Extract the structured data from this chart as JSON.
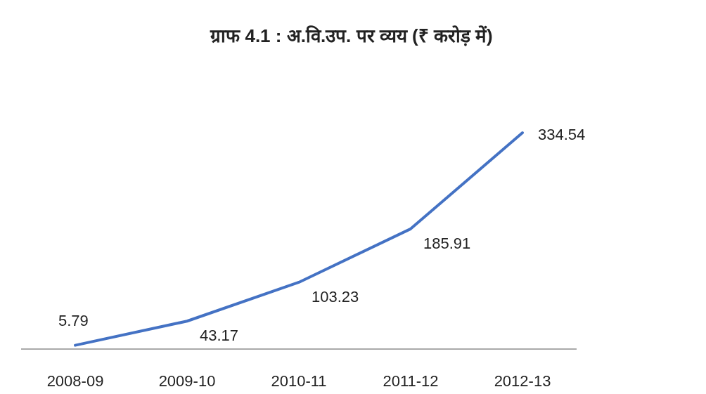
{
  "chart_data": {
    "type": "line",
    "title": "ग्राफ 4.1 : अ.वि.उप. पर व्यय (₹ करोड़ में)",
    "categories": [
      "2008-09",
      "2009-10",
      "2010-11",
      "2011-12",
      "2012-13"
    ],
    "series": [
      {
        "color": "#4472c4",
        "values": [
          5.79,
          43.17,
          103.23,
          185.91,
          334.54
        ]
      }
    ],
    "data_labels": true,
    "marker": "none",
    "line_style": "solid"
  }
}
